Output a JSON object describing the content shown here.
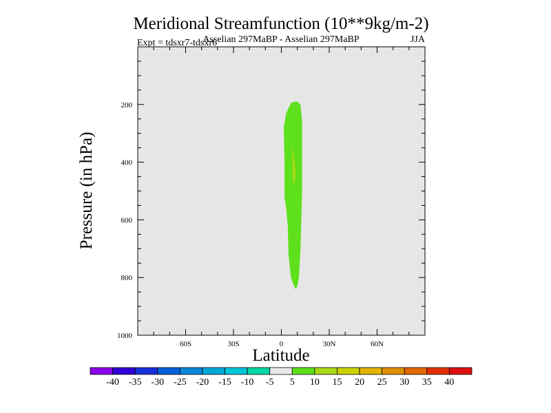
{
  "chart_data": {
    "type": "contour",
    "title": "Meridional Streamfunction (10**9kg/m-2)",
    "subtitle": "Asselian 297MaBP - Asselian 297MaBP",
    "left_label": "Expt = tdsxr7-tdsxr6",
    "season_label": "JJA",
    "xlabel": "Latitude",
    "ylabel": "Pressure (in hPa)",
    "xlim": [
      -90,
      90
    ],
    "ylim": [
      0,
      1000
    ],
    "x_ticks": [
      {
        "value": -60,
        "label": "60S"
      },
      {
        "value": -30,
        "label": "30S"
      },
      {
        "value": 0,
        "label": "0"
      },
      {
        "value": 30,
        "label": "30N"
      },
      {
        "value": 60,
        "label": "60N"
      }
    ],
    "y_ticks": [
      {
        "value": 200,
        "label": "200"
      },
      {
        "value": 400,
        "label": "400"
      },
      {
        "value": 600,
        "label": "600"
      },
      {
        "value": 800,
        "label": "800"
      },
      {
        "value": 1000,
        "label": "1000"
      }
    ],
    "background_color": "#e6e6e6",
    "contour_regions": [
      {
        "name": "5-to-10",
        "color": "#5ee01c",
        "polygon": [
          [
            10,
            190
          ],
          [
            12,
            200
          ],
          [
            13,
            260
          ],
          [
            13,
            500
          ],
          [
            12,
            700
          ],
          [
            11,
            800
          ],
          [
            10,
            830
          ],
          [
            9,
            840
          ],
          [
            8,
            830
          ],
          [
            6,
            800
          ],
          [
            4.5,
            720
          ],
          [
            4,
            620
          ],
          [
            3,
            560
          ],
          [
            2,
            520
          ],
          [
            2,
            400
          ],
          [
            1.5,
            280
          ],
          [
            3,
            230
          ],
          [
            6,
            195
          ],
          [
            8,
            190
          ]
        ]
      },
      {
        "name": "10-to-15",
        "color": "#a8d816",
        "polygon": [
          [
            7,
            340
          ],
          [
            9,
            430
          ],
          [
            8.5,
            460
          ],
          [
            8,
            480
          ],
          [
            7,
            460
          ],
          [
            6.8,
            400
          ]
        ]
      }
    ],
    "colorbar": {
      "labels": [
        "-40",
        "-35",
        "-30",
        "-25",
        "-20",
        "-15",
        "-10",
        "-5",
        "5",
        "10",
        "15",
        "20",
        "25",
        "30",
        "35",
        "40"
      ],
      "colors": [
        "#8a00e8",
        "#3000d8",
        "#1830d8",
        "#0060d8",
        "#0a86d8",
        "#00a8d8",
        "#00c4d8",
        "#00d8a8",
        "#e8e8e8",
        "#5ee01c",
        "#a8d816",
        "#ccd000",
        "#e0b400",
        "#e09000",
        "#e06800",
        "#e03000",
        "#e01010"
      ]
    }
  }
}
